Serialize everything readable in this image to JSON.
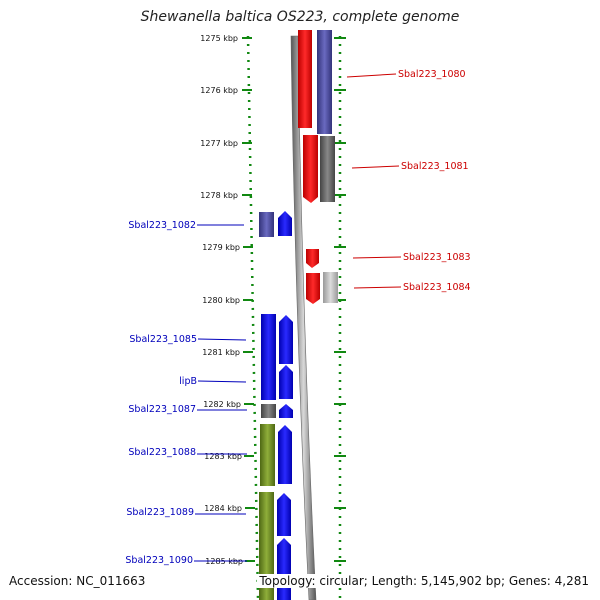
{
  "title": "Shewanella baltica OS223, complete genome",
  "footer": {
    "accession": "Accession: NC_011663",
    "summary": "Topology: circular; Length: 5,145,902 bp; Genes: 4,281"
  },
  "colors": {
    "forward_cds": "#0000ff",
    "reverse_cds": "#ff0000",
    "cog_purple": "#4b4b9e",
    "cog_gray": "#707070",
    "cog_light_gray": "#b8b8b8",
    "cog_olive": "#6b8a22",
    "tick": "#118811",
    "label_left": "#0000bb",
    "label_right": "#cc0000"
  },
  "axis": {
    "unit": "kbp",
    "ticks": [
      "1275 kbp",
      "1276 kbp",
      "1277 kbp",
      "1278 kbp",
      "1279 kbp",
      "1280 kbp",
      "1281 kbp",
      "1282 kbp",
      "1283 kbp",
      "1284 kbp",
      "1285 kbp"
    ]
  },
  "genes": {
    "right": [
      {
        "label": "Sbal223_1080"
      },
      {
        "label": "Sbal223_1081"
      },
      {
        "label": "Sbal223_1083"
      },
      {
        "label": "Sbal223_1084"
      }
    ],
    "left": [
      {
        "label": "Sbal223_1082"
      },
      {
        "label": "Sbal223_1085"
      },
      {
        "label": "lipB"
      },
      {
        "label": "Sbal223_1087"
      },
      {
        "label": "Sbal223_1088"
      },
      {
        "label": "Sbal223_1089"
      },
      {
        "label": "Sbal223_1090"
      }
    ]
  }
}
